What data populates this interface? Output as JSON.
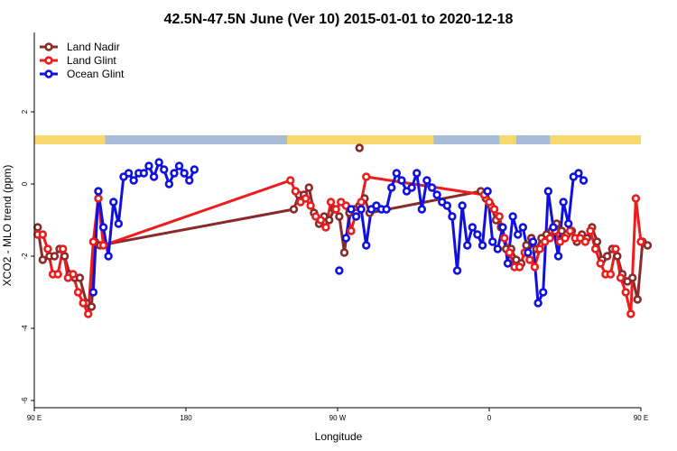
{
  "chart_data": {
    "type": "line",
    "title": "42.5N-47.5N June (Ver 10)   2015-01-01 to 2020-12-18",
    "xlabel": "Longitude",
    "ylabel": "XCO2 - MLO trend (ppm)",
    "xlim": [
      90,
      450
    ],
    "ylim": [
      -6.2,
      4.2
    ],
    "xticks": [
      {
        "value": 90,
        "label": "90 E"
      },
      {
        "value": 180,
        "label": "180"
      },
      {
        "value": 270,
        "label": "90 W"
      },
      {
        "value": 360,
        "label": "0"
      },
      {
        "value": 450,
        "label": "90 E"
      },
      {
        "value": 540,
        "label": "180"
      }
    ],
    "yticks": [
      -6,
      -4,
      -2,
      0,
      2
    ],
    "legend_position": "top-left",
    "land_ocean_strip": {
      "y_range": [
        1.1,
        1.35
      ],
      "land_color": "#f8d76c",
      "ocean_color": "#a8bcd8",
      "land_segments": [
        [
          90,
          132
        ],
        [
          240,
          327
        ],
        [
          366,
          376
        ],
        [
          396,
          494
        ]
      ]
    },
    "series": [
      {
        "name": "Land Nadir",
        "color": "#8b2a2a",
        "points": [
          [
            92,
            -1.2
          ],
          [
            95,
            -2.1
          ],
          [
            99,
            -2.0
          ],
          [
            102,
            -2.0
          ],
          [
            105,
            -1.8
          ],
          [
            108,
            -2.0
          ],
          [
            111,
            -2.5
          ],
          [
            114,
            -2.6
          ],
          [
            117,
            -2.6
          ],
          [
            121,
            -3.3
          ],
          [
            124,
            -3.4
          ],
          [
            126,
            -1.6
          ],
          [
            129,
            -1.7
          ],
          [
            244,
            -0.7
          ],
          [
            247,
            -0.3
          ],
          [
            250,
            -0.3
          ],
          [
            253,
            -0.1
          ],
          [
            256,
            -0.8
          ],
          [
            259,
            -1.1
          ],
          [
            262,
            -0.9
          ],
          [
            265,
            -1.0
          ],
          [
            268,
            -0.7
          ],
          [
            271,
            -0.9
          ],
          [
            274,
            -1.9
          ],
          [
            277,
            -0.8
          ],
          [
            280,
            -0.7
          ],
          [
            283,
            -0.6
          ],
          [
            286,
            -0.4
          ],
          [
            289,
            -0.8
          ],
          [
            355,
            -0.2
          ],
          [
            358,
            -0.4
          ],
          [
            361,
            -0.6
          ],
          [
            364,
            -1.0
          ],
          [
            367,
            -1.2
          ],
          [
            370,
            -1.8
          ],
          [
            373,
            -1.8
          ],
          [
            376,
            -2.1
          ],
          [
            379,
            -2.2
          ],
          [
            382,
            -1.7
          ],
          [
            385,
            -1.5
          ],
          [
            388,
            -1.8
          ],
          [
            391,
            -1.5
          ],
          [
            394,
            -1.4
          ],
          [
            397,
            -1.3
          ],
          [
            400,
            -1.1
          ],
          [
            403,
            -1.3
          ],
          [
            406,
            -1.4
          ],
          [
            409,
            -1.3
          ],
          [
            412,
            -1.6
          ],
          [
            415,
            -1.4
          ],
          [
            418,
            -1.5
          ],
          [
            421,
            -1.2
          ],
          [
            424,
            -1.6
          ],
          [
            427,
            -2.1
          ],
          [
            430,
            -2.0
          ],
          [
            433,
            -1.8
          ],
          [
            436,
            -2.0
          ],
          [
            439,
            -2.5
          ],
          [
            442,
            -2.7
          ],
          [
            445,
            -2.6
          ],
          [
            448,
            -3.2
          ],
          [
            451,
            -1.6
          ],
          [
            454,
            -1.7
          ]
        ],
        "isolated": [
          [
            283,
            1.0
          ]
        ]
      },
      {
        "name": "Land Glint",
        "color": "#ee1c1c",
        "points": [
          [
            92,
            -1.4
          ],
          [
            95,
            -1.4
          ],
          [
            98,
            -1.8
          ],
          [
            101,
            -2.5
          ],
          [
            104,
            -2.5
          ],
          [
            107,
            -1.8
          ],
          [
            110,
            -2.6
          ],
          [
            113,
            -2.5
          ],
          [
            116,
            -3.0
          ],
          [
            119,
            -3.3
          ],
          [
            122,
            -3.6
          ],
          [
            125,
            -1.6
          ],
          [
            128,
            -0.4
          ],
          [
            131,
            -1.7
          ],
          [
            242,
            0.1
          ],
          [
            245,
            -0.2
          ],
          [
            248,
            -0.5
          ],
          [
            251,
            -0.4
          ],
          [
            254,
            -0.6
          ],
          [
            257,
            -0.9
          ],
          [
            260,
            -1.0
          ],
          [
            263,
            -1.2
          ],
          [
            266,
            -0.5
          ],
          [
            269,
            -0.7
          ],
          [
            272,
            -0.5
          ],
          [
            275,
            -0.6
          ],
          [
            278,
            -1.3
          ],
          [
            281,
            -0.8
          ],
          [
            284,
            -0.5
          ],
          [
            287,
            0.2
          ],
          [
            357,
            -0.3
          ],
          [
            360,
            -0.5
          ],
          [
            363,
            -0.7
          ],
          [
            366,
            -0.9
          ],
          [
            369,
            -1.5
          ],
          [
            372,
            -1.9
          ],
          [
            375,
            -2.3
          ],
          [
            378,
            -2.3
          ],
          [
            381,
            -1.9
          ],
          [
            384,
            -2.1
          ],
          [
            387,
            -2.3
          ],
          [
            390,
            -1.8
          ],
          [
            393,
            -1.6
          ],
          [
            396,
            -1.5
          ],
          [
            399,
            -1.3
          ],
          [
            402,
            -1.6
          ],
          [
            405,
            -1.5
          ],
          [
            408,
            -1.3
          ],
          [
            411,
            -1.5
          ],
          [
            414,
            -1.5
          ],
          [
            417,
            -1.6
          ],
          [
            420,
            -1.3
          ],
          [
            423,
            -1.8
          ],
          [
            426,
            -2.2
          ],
          [
            429,
            -2.5
          ],
          [
            432,
            -2.5
          ],
          [
            435,
            -1.8
          ],
          [
            438,
            -2.6
          ],
          [
            441,
            -3.0
          ],
          [
            444,
            -3.6
          ],
          [
            447,
            -0.4
          ],
          [
            450,
            -1.6
          ]
        ]
      },
      {
        "name": "Ocean Glint",
        "color": "#1111dd",
        "points": [
          [
            125,
            -3.0
          ],
          [
            128,
            -0.2
          ],
          [
            131,
            -1.2
          ],
          [
            134,
            -2.0
          ],
          [
            137,
            -0.5
          ],
          [
            140,
            -1.1
          ],
          [
            143,
            0.2
          ],
          [
            146,
            0.3
          ],
          [
            149,
            0.1
          ],
          [
            152,
            0.3
          ],
          [
            155,
            0.3
          ],
          [
            158,
            0.5
          ],
          [
            161,
            0.2
          ],
          [
            164,
            0.6
          ],
          [
            167,
            0.4
          ],
          [
            170,
            0.0
          ],
          [
            173,
            0.3
          ],
          [
            176,
            0.5
          ],
          [
            179,
            0.3
          ],
          [
            182,
            0.1
          ],
          [
            185,
            0.4
          ]
        ],
        "points_b": [
          [
            275,
            -1.5
          ],
          [
            278,
            -0.7
          ],
          [
            281,
            -0.9
          ],
          [
            284,
            -0.7
          ],
          [
            287,
            -1.7
          ],
          [
            290,
            -0.7
          ],
          [
            293,
            -0.6
          ],
          [
            296,
            -0.7
          ],
          [
            299,
            -0.7
          ],
          [
            302,
            -0.1
          ],
          [
            305,
            0.3
          ],
          [
            308,
            0.1
          ],
          [
            311,
            -0.2
          ],
          [
            314,
            -0.1
          ],
          [
            317,
            0.3
          ],
          [
            320,
            -0.7
          ],
          [
            323,
            0.1
          ],
          [
            326,
            -0.1
          ],
          [
            329,
            -0.3
          ],
          [
            332,
            -0.5
          ],
          [
            335,
            -0.6
          ],
          [
            338,
            -0.9
          ],
          [
            341,
            -2.4
          ],
          [
            344,
            -0.6
          ],
          [
            347,
            -1.7
          ],
          [
            350,
            -1.2
          ],
          [
            353,
            -1.4
          ],
          [
            356,
            -1.7
          ],
          [
            359,
            -0.2
          ],
          [
            362,
            -1.6
          ],
          [
            365,
            -1.8
          ],
          [
            368,
            -1.2
          ],
          [
            371,
            -2.2
          ],
          [
            374,
            -0.9
          ],
          [
            377,
            -1.4
          ],
          [
            380,
            -1.2
          ],
          [
            383,
            -1.9
          ],
          [
            386,
            -1.6
          ],
          [
            389,
            -3.3
          ],
          [
            392,
            -3.0
          ],
          [
            395,
            -0.2
          ],
          [
            398,
            -1.2
          ],
          [
            401,
            -2.0
          ],
          [
            404,
            -0.5
          ],
          [
            407,
            -1.1
          ],
          [
            410,
            0.2
          ],
          [
            413,
            0.3
          ],
          [
            416,
            0.1
          ]
        ],
        "isolated": [
          [
            271,
            -2.4
          ]
        ]
      }
    ]
  }
}
